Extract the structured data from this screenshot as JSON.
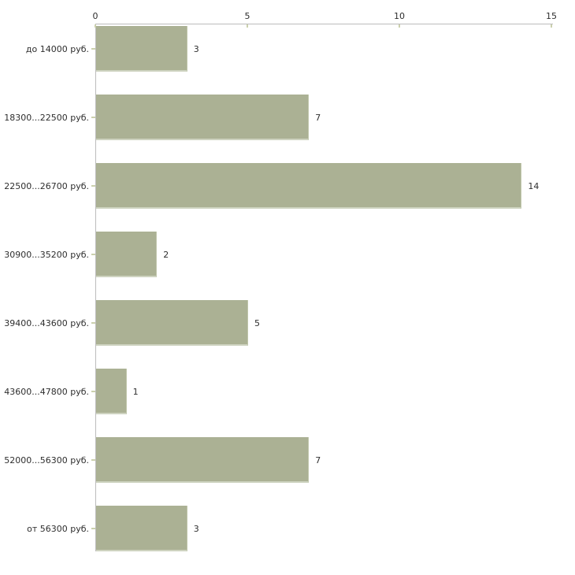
{
  "chart_data": {
    "type": "bar",
    "orientation": "horizontal",
    "categories": [
      "до 14000 руб.",
      "18300...22500 руб.",
      "22500...26700 руб.",
      "30900...35200 руб.",
      "39400...43600 руб.",
      "43600...47800 руб.",
      "52000...56300 руб.",
      "от 56300 руб."
    ],
    "values": [
      3,
      7,
      14,
      2,
      5,
      1,
      7,
      3
    ],
    "value_labels": [
      "3",
      "7",
      "14",
      "2",
      "5",
      "1",
      "7",
      "3"
    ],
    "x_ticks": [
      0,
      5,
      10,
      15
    ],
    "x_tick_labels": [
      "0",
      "5",
      "10",
      "15"
    ],
    "xlim": [
      0,
      15
    ],
    "x_axis_position": "top",
    "grid": false,
    "legend": false,
    "colors": {
      "bar": "#abb194",
      "bar_edge_bottom": "#ced3c0",
      "bar_edge_right": "#c0c6ab",
      "axis": "#bcbcbc",
      "tick": "#cbd0ad",
      "text": "#2e2e2e",
      "background": "#ffffff"
    }
  }
}
